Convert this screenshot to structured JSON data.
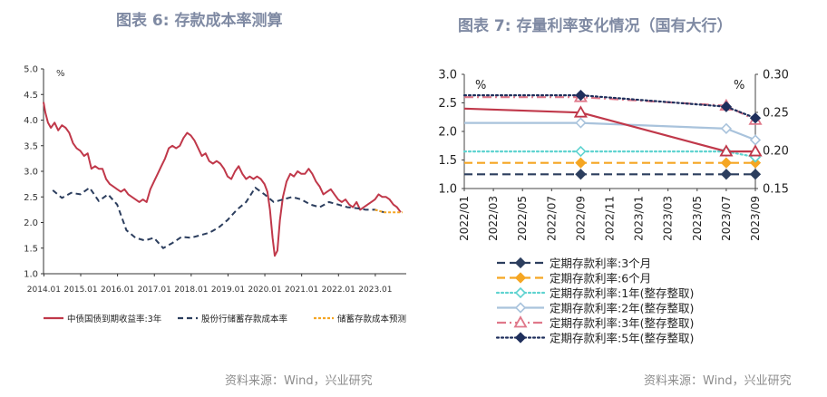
{
  "left_figure": {
    "title": "图表 6:  存款成本率测算",
    "source": "资料来源：Wind，兴业研究"
  },
  "right_figure": {
    "title": "图表 7:  存量利率变化情况（国有大行）",
    "source": "资料来源：Wind，兴业研究"
  },
  "colors": {
    "title": "#7f8aa3",
    "red": "#c0384a",
    "navy": "#2c3e5e",
    "orange": "#f5a623",
    "teal": "#5fd3d0",
    "lightblue": "#a9c3dc",
    "pink": "#e0788a",
    "darknavy": "#1f2f5c"
  },
  "chart_data": [
    {
      "type": "line",
      "y_unit_label": "%",
      "ylim": [
        1.0,
        5.0
      ],
      "y_ticks": [
        "1.0",
        "1.5",
        "2.0",
        "2.5",
        "3.0",
        "3.5",
        "4.0",
        "4.5",
        "5.0"
      ],
      "x_ticks": [
        "2014.01",
        "2015.01",
        "2016.01",
        "2017.01",
        "2018.01",
        "2019.01",
        "2020.01",
        "2021.01",
        "2022.01",
        "2023.01"
      ],
      "legend_position": "bottom",
      "series": [
        {
          "name": "中债国债到期收益率:3年",
          "style": "solid",
          "color": "#c0384a",
          "points": [
            [
              2014.0,
              4.35
            ],
            [
              2014.05,
              4.15
            ],
            [
              2014.12,
              3.95
            ],
            [
              2014.2,
              3.85
            ],
            [
              2014.3,
              3.95
            ],
            [
              2014.4,
              3.8
            ],
            [
              2014.5,
              3.9
            ],
            [
              2014.6,
              3.85
            ],
            [
              2014.7,
              3.75
            ],
            [
              2014.8,
              3.55
            ],
            [
              2014.9,
              3.45
            ],
            [
              2015.0,
              3.4
            ],
            [
              2015.1,
              3.3
            ],
            [
              2015.2,
              3.35
            ],
            [
              2015.3,
              3.05
            ],
            [
              2015.4,
              3.1
            ],
            [
              2015.5,
              3.05
            ],
            [
              2015.6,
              3.05
            ],
            [
              2015.7,
              2.85
            ],
            [
              2015.8,
              2.75
            ],
            [
              2015.9,
              2.7
            ],
            [
              2016.0,
              2.65
            ],
            [
              2016.1,
              2.6
            ],
            [
              2016.2,
              2.65
            ],
            [
              2016.3,
              2.55
            ],
            [
              2016.4,
              2.5
            ],
            [
              2016.5,
              2.45
            ],
            [
              2016.6,
              2.4
            ],
            [
              2016.7,
              2.45
            ],
            [
              2016.8,
              2.4
            ],
            [
              2016.9,
              2.65
            ],
            [
              2017.0,
              2.8
            ],
            [
              2017.1,
              2.95
            ],
            [
              2017.2,
              3.1
            ],
            [
              2017.3,
              3.25
            ],
            [
              2017.4,
              3.45
            ],
            [
              2017.5,
              3.5
            ],
            [
              2017.6,
              3.45
            ],
            [
              2017.7,
              3.5
            ],
            [
              2017.8,
              3.65
            ],
            [
              2017.9,
              3.75
            ],
            [
              2018.0,
              3.7
            ],
            [
              2018.1,
              3.6
            ],
            [
              2018.2,
              3.45
            ],
            [
              2018.3,
              3.3
            ],
            [
              2018.4,
              3.35
            ],
            [
              2018.5,
              3.2
            ],
            [
              2018.6,
              3.15
            ],
            [
              2018.7,
              3.2
            ],
            [
              2018.8,
              3.15
            ],
            [
              2018.9,
              3.05
            ],
            [
              2019.0,
              2.9
            ],
            [
              2019.1,
              2.85
            ],
            [
              2019.2,
              3.0
            ],
            [
              2019.3,
              3.1
            ],
            [
              2019.4,
              2.95
            ],
            [
              2019.5,
              2.85
            ],
            [
              2019.6,
              2.9
            ],
            [
              2019.7,
              2.85
            ],
            [
              2019.8,
              2.9
            ],
            [
              2019.9,
              2.85
            ],
            [
              2020.0,
              2.75
            ],
            [
              2020.08,
              2.6
            ],
            [
              2020.15,
              2.25
            ],
            [
              2020.22,
              1.7
            ],
            [
              2020.28,
              1.35
            ],
            [
              2020.35,
              1.45
            ],
            [
              2020.42,
              2.05
            ],
            [
              2020.5,
              2.5
            ],
            [
              2020.6,
              2.8
            ],
            [
              2020.7,
              2.95
            ],
            [
              2020.8,
              2.9
            ],
            [
              2020.9,
              3.0
            ],
            [
              2021.0,
              2.95
            ],
            [
              2021.1,
              2.95
            ],
            [
              2021.2,
              3.05
            ],
            [
              2021.3,
              2.95
            ],
            [
              2021.4,
              2.8
            ],
            [
              2021.5,
              2.7
            ],
            [
              2021.6,
              2.55
            ],
            [
              2021.7,
              2.6
            ],
            [
              2021.8,
              2.65
            ],
            [
              2021.9,
              2.55
            ],
            [
              2022.0,
              2.45
            ],
            [
              2022.1,
              2.4
            ],
            [
              2022.2,
              2.45
            ],
            [
              2022.3,
              2.35
            ],
            [
              2022.4,
              2.3
            ],
            [
              2022.5,
              2.4
            ],
            [
              2022.6,
              2.25
            ],
            [
              2022.7,
              2.3
            ],
            [
              2022.8,
              2.35
            ],
            [
              2022.9,
              2.4
            ],
            [
              2023.0,
              2.45
            ],
            [
              2023.1,
              2.55
            ],
            [
              2023.2,
              2.5
            ],
            [
              2023.3,
              2.5
            ],
            [
              2023.4,
              2.45
            ],
            [
              2023.5,
              2.35
            ],
            [
              2023.6,
              2.3
            ],
            [
              2023.7,
              2.2
            ]
          ]
        },
        {
          "name": "股份行储蓄存款成本率",
          "style": "dashed",
          "color": "#2c3e5e",
          "points": [
            [
              2014.25,
              2.63
            ],
            [
              2014.5,
              2.48
            ],
            [
              2014.75,
              2.58
            ],
            [
              2015.0,
              2.55
            ],
            [
              2015.25,
              2.68
            ],
            [
              2015.5,
              2.42
            ],
            [
              2015.75,
              2.55
            ],
            [
              2016.0,
              2.35
            ],
            [
              2016.25,
              1.85
            ],
            [
              2016.5,
              1.7
            ],
            [
              2016.75,
              1.65
            ],
            [
              2017.0,
              1.7
            ],
            [
              2017.25,
              1.5
            ],
            [
              2017.5,
              1.6
            ],
            [
              2017.75,
              1.72
            ],
            [
              2018.0,
              1.7
            ],
            [
              2018.25,
              1.75
            ],
            [
              2018.5,
              1.8
            ],
            [
              2018.75,
              1.9
            ],
            [
              2019.0,
              2.05
            ],
            [
              2019.25,
              2.25
            ],
            [
              2019.5,
              2.4
            ],
            [
              2019.75,
              2.68
            ],
            [
              2020.0,
              2.55
            ],
            [
              2020.25,
              2.4
            ],
            [
              2020.5,
              2.45
            ],
            [
              2020.75,
              2.5
            ],
            [
              2021.0,
              2.45
            ],
            [
              2021.25,
              2.35
            ],
            [
              2021.5,
              2.3
            ],
            [
              2021.75,
              2.4
            ],
            [
              2022.0,
              2.35
            ],
            [
              2022.25,
              2.3
            ],
            [
              2022.5,
              2.28
            ],
            [
              2022.75,
              2.25
            ],
            [
              2023.0,
              2.25
            ],
            [
              2023.25,
              2.2
            ]
          ]
        },
        {
          "name": "储蓄存款成本预测",
          "style": "dotted",
          "color": "#f5a623",
          "points": [
            [
              2023.0,
              2.25
            ],
            [
              2023.25,
              2.2
            ],
            [
              2023.5,
              2.2
            ],
            [
              2023.75,
              2.2
            ]
          ]
        }
      ]
    },
    {
      "type": "line",
      "left_axis": {
        "unit_label": "%",
        "ylim": [
          1.0,
          3.0
        ],
        "ticks": [
          "1.0",
          "1.5",
          "2.0",
          "2.5",
          "3.0"
        ]
      },
      "right_axis": {
        "unit_label": "%",
        "ylim": [
          0.15,
          0.3
        ],
        "ticks": [
          "0.15",
          "0.20",
          "0.25",
          "0.30"
        ]
      },
      "categories": [
        "2022/01",
        "2022/03",
        "2022/05",
        "2022/07",
        "2022/09",
        "2022/11",
        "2023/01",
        "2023/03",
        "2023/05",
        "2023/07",
        "2023/09"
      ],
      "legend_position": "bottom",
      "series": [
        {
          "name": "定期存款利率:3个月",
          "axis": "left",
          "style": "dash",
          "color": "#2c3e5e",
          "marker": "diamond-filled",
          "x": [
            0,
            4,
            9,
            10
          ],
          "values": [
            1.25,
            1.25,
            1.25,
            1.25
          ]
        },
        {
          "name": "定期存款利率:6个月",
          "axis": "left",
          "style": "dash",
          "color": "#f5a623",
          "marker": "diamond-filled",
          "x": [
            0,
            4,
            9,
            10
          ],
          "values": [
            1.45,
            1.45,
            1.45,
            1.45
          ]
        },
        {
          "name": "定期存款利率:1年(整存整取)",
          "axis": "left",
          "style": "dot",
          "color": "#5fd3d0",
          "marker": "diamond-open",
          "x": [
            0,
            4,
            9,
            10
          ],
          "values": [
            1.65,
            1.65,
            1.65,
            1.55
          ]
        },
        {
          "name": "定期存款利率:2年(整存整取)",
          "axis": "left",
          "style": "solid",
          "color": "#a9c3dc",
          "marker": "diamond-open",
          "x": [
            0,
            4,
            9,
            10
          ],
          "values": [
            2.15,
            2.15,
            2.05,
            1.85
          ]
        },
        {
          "name": "定期存款利率:3年(整存整取)",
          "axis": "left",
          "style": "dashdot",
          "color": "#e0788a",
          "marker": "triangle-open",
          "x": [
            0,
            4,
            9,
            10
          ],
          "values": [
            2.6,
            2.6,
            2.45,
            2.2
          ]
        },
        {
          "name": "定期存款利率:5年(整存整取)",
          "axis": "right",
          "style": "dotted",
          "color": "#1f2f5c",
          "marker": "diamond-filled",
          "x": [
            0,
            4,
            9,
            10
          ],
          "values": [
            0.2725,
            0.2725,
            0.2575,
            0.2425
          ]
        },
        {
          "name": "",
          "axis": "left",
          "style": "solid",
          "color": "#c0384a",
          "marker": "triangle-open",
          "x": [
            0,
            4,
            9,
            10
          ],
          "values": [
            2.4,
            2.33,
            1.65,
            1.65
          ]
        }
      ]
    }
  ]
}
